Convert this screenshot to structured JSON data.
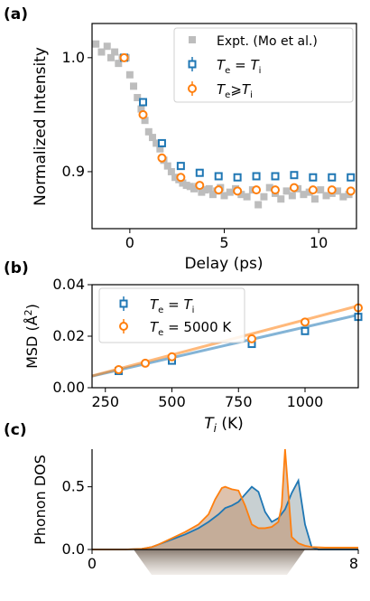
{
  "chart_data": [
    {
      "panel_label": "(a)",
      "type": "scatter",
      "xlabel": "Delay (ps)",
      "ylabel": "Normalized Intensity",
      "xlim": [
        -2,
        12
      ],
      "ylim": [
        0.85,
        1.03
      ],
      "xticks": [
        0,
        5,
        10
      ],
      "yticks": [
        0.9,
        1.0
      ],
      "ytick_labels": [
        "0.9",
        "1.0"
      ],
      "legend_position": "top-right",
      "series": [
        {
          "name": "Expt. (Mo et al.)",
          "color": "#bdbdbd",
          "marker": "square-filled",
          "x": [
            -1.8,
            -1.5,
            -1.2,
            -1.0,
            -0.8,
            -0.6,
            -0.4,
            -0.2,
            0.0,
            0.2,
            0.4,
            0.6,
            0.8,
            1.0,
            1.2,
            1.4,
            1.6,
            1.8,
            2.0,
            2.2,
            2.4,
            2.6,
            2.8,
            3.0,
            3.2,
            3.4,
            3.6,
            3.8,
            4.0,
            4.2,
            4.4,
            4.6,
            4.8,
            5.0,
            5.3,
            5.6,
            5.9,
            6.2,
            6.5,
            6.8,
            7.1,
            7.4,
            7.7,
            8.0,
            8.3,
            8.6,
            8.9,
            9.2,
            9.5,
            9.8,
            10.1,
            10.4,
            10.7,
            11.0,
            11.3,
            11.6
          ],
          "y": [
            1.012,
            1.005,
            1.01,
            1.0,
            1.005,
            0.995,
            1.0,
            1.0,
            0.985,
            0.975,
            0.965,
            0.955,
            0.945,
            0.935,
            0.93,
            0.925,
            0.92,
            0.91,
            0.905,
            0.9,
            0.895,
            0.893,
            0.89,
            0.888,
            0.887,
            0.885,
            0.887,
            0.882,
            0.884,
            0.885,
            0.88,
            0.883,
            0.886,
            0.879,
            0.882,
            0.885,
            0.88,
            0.878,
            0.884,
            0.871,
            0.878,
            0.886,
            0.881,
            0.876,
            0.883,
            0.879,
            0.885,
            0.88,
            0.882,
            0.876,
            0.884,
            0.879,
            0.881,
            0.883,
            0.878,
            0.88
          ]
        },
        {
          "name": "T_e = T_i",
          "color": "#1f77b4",
          "marker": "square-open",
          "x": [
            -0.3,
            0.7,
            1.7,
            2.7,
            3.7,
            4.7,
            5.7,
            6.7,
            7.7,
            8.7,
            9.7,
            10.7,
            11.7
          ],
          "y": [
            1.0,
            0.961,
            0.925,
            0.905,
            0.899,
            0.896,
            0.895,
            0.896,
            0.896,
            0.897,
            0.895,
            0.895,
            0.895
          ]
        },
        {
          "name": "T_e ⩾ T_i",
          "color": "#ff7f0e",
          "marker": "circle-open",
          "x": [
            -0.3,
            0.7,
            1.7,
            2.7,
            3.7,
            4.7,
            5.7,
            6.7,
            7.7,
            8.7,
            9.7,
            10.7,
            11.7
          ],
          "y": [
            1.0,
            0.95,
            0.912,
            0.895,
            0.888,
            0.884,
            0.883,
            0.884,
            0.884,
            0.886,
            0.884,
            0.884,
            0.883
          ]
        }
      ],
      "legend": [
        {
          "label": "Expt. (Mo et al.)"
        },
        {
          "pre": "T",
          "sub1": "e",
          "op": " = ",
          "var2": "T",
          "sub2": "i"
        },
        {
          "pre": "T",
          "sub1": "e",
          "op": "⩾",
          "var2": "T",
          "sub2": "i"
        }
      ]
    },
    {
      "panel_label": "(b)",
      "type": "line",
      "xlabel_var": "T",
      "xlabel_sub": "i",
      "xlabel_unit": " (K)",
      "ylabel": "MSD (Å²)",
      "ylabel_pre": "MSD (Å",
      "ylabel_sup": "2",
      "ylabel_post": ")",
      "xlim": [
        200,
        1200
      ],
      "ylim": [
        0.0,
        0.04
      ],
      "xticks": [
        250,
        500,
        750,
        1000
      ],
      "yticks": [
        0.0,
        0.02,
        0.04
      ],
      "ytick_labels": [
        "0.00",
        "0.02",
        "0.04"
      ],
      "legend_position": "top-left",
      "series": [
        {
          "name": "T_e = T_i",
          "color": "#1f77b4",
          "marker": "square-open",
          "x": [
            300,
            500,
            800,
            1000,
            1200
          ],
          "y": [
            0.0065,
            0.0105,
            0.017,
            0.022,
            0.0275
          ],
          "fit": {
            "x": [
              200,
              1200
            ],
            "y": [
              0.0045,
              0.0283
            ]
          }
        },
        {
          "name": "T_e = 5000 K",
          "color": "#ff7f0e",
          "marker": "circle-open",
          "x": [
            300,
            400,
            500,
            800,
            1000,
            1200
          ],
          "y": [
            0.007,
            0.0095,
            0.012,
            0.019,
            0.0255,
            0.031
          ],
          "fit": {
            "x": [
              200,
              1200
            ],
            "y": [
              0.0046,
              0.0318
            ]
          }
        }
      ],
      "legend": [
        {
          "pre": "T",
          "sub1": "e",
          "op": " = ",
          "var2": "T",
          "sub2": "i"
        },
        {
          "pre": "T",
          "sub1": "e",
          "op": " = 5000 K",
          "var2": "",
          "sub2": ""
        }
      ]
    },
    {
      "panel_label": "(c)",
      "type": "area",
      "ylabel": "Phonon DOS",
      "xlim": [
        0,
        8
      ],
      "ylim": [
        0,
        0.8
      ],
      "xticks": [
        0,
        8
      ],
      "yticks": [
        0.0,
        0.5
      ],
      "ytick_labels": [
        "0.0",
        "0.5"
      ],
      "series": [
        {
          "color": "#1f77b4",
          "fill": "#9aa9ad",
          "x": [
            0,
            0.5,
            1.0,
            1.5,
            1.8,
            2.0,
            2.4,
            2.8,
            3.2,
            3.5,
            3.8,
            4.0,
            4.2,
            4.4,
            4.6,
            4.8,
            5.0,
            5.2,
            5.4,
            5.6,
            5.8,
            6.0,
            6.2,
            6.4,
            6.6,
            6.8,
            7.0,
            8.0
          ],
          "y": [
            0,
            0,
            0,
            0.005,
            0.02,
            0.04,
            0.08,
            0.12,
            0.17,
            0.22,
            0.28,
            0.33,
            0.35,
            0.38,
            0.44,
            0.5,
            0.46,
            0.3,
            0.22,
            0.25,
            0.32,
            0.45,
            0.55,
            0.2,
            0.02,
            0,
            0,
            0
          ]
        },
        {
          "color": "#ff7f0e",
          "fill": "#c3906a",
          "x": [
            0,
            0.5,
            1.0,
            1.5,
            1.8,
            2.0,
            2.4,
            2.8,
            3.2,
            3.5,
            3.7,
            3.9,
            4.0,
            4.2,
            4.4,
            4.6,
            4.8,
            5.0,
            5.2,
            5.4,
            5.6,
            5.7,
            5.8,
            5.9,
            6.0,
            6.2,
            6.4,
            6.6,
            7.0,
            8.0
          ],
          "y": [
            0,
            0,
            0,
            0.005,
            0.02,
            0.04,
            0.09,
            0.14,
            0.2,
            0.28,
            0.4,
            0.49,
            0.5,
            0.48,
            0.47,
            0.35,
            0.2,
            0.17,
            0.17,
            0.18,
            0.22,
            0.35,
            0.8,
            0.45,
            0.1,
            0.05,
            0.03,
            0.02,
            0.015,
            0.015
          ]
        }
      ]
    }
  ]
}
